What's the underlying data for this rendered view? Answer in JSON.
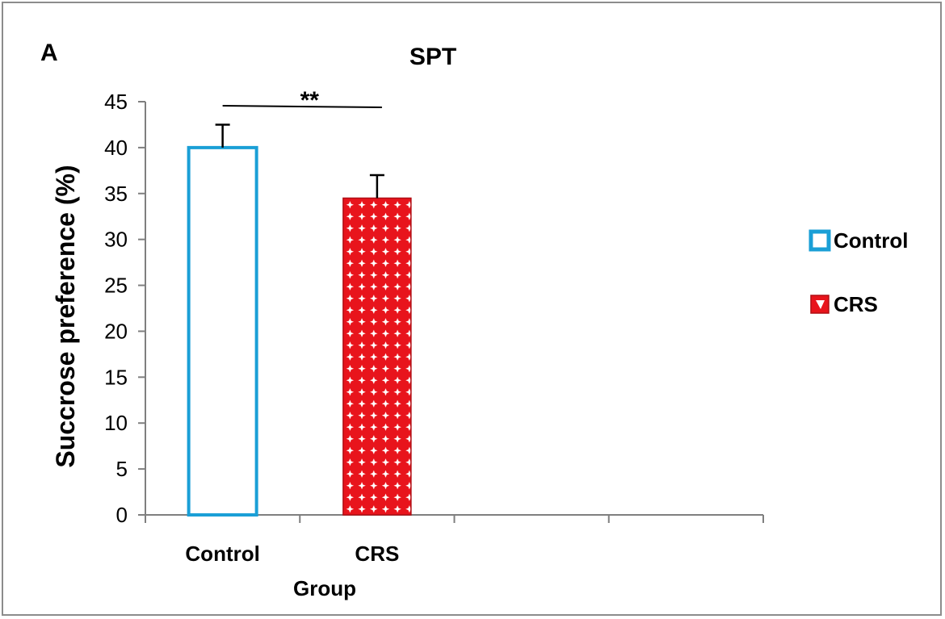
{
  "panel_label": "A",
  "colors": {
    "control_border": "#1a9fd6",
    "control_fill": "#ffffff",
    "crs_fill": "#e8141c",
    "crs_pattern": "#ffffff",
    "axis": "#7f7f7f",
    "error": "#000000"
  },
  "chart_data": {
    "type": "bar",
    "title": "SPT",
    "xlabel": "Group",
    "ylabel": "Succrose preference (%)",
    "categories": [
      "Control",
      "CRS"
    ],
    "x_slots": 4,
    "values": [
      40,
      34.5
    ],
    "errors": [
      2.5,
      2.5
    ],
    "ylim": [
      0,
      45
    ],
    "yticks": [
      "0",
      "5",
      "10",
      "15",
      "20",
      "25",
      "30",
      "35",
      "40",
      "45"
    ],
    "ytick_values": [
      0,
      5,
      10,
      15,
      20,
      25,
      30,
      35,
      40,
      45
    ],
    "legend": [
      "Control",
      "CRS"
    ],
    "legend_position": "right",
    "significance": {
      "label": "**",
      "between": [
        "Control",
        "CRS"
      ]
    }
  }
}
